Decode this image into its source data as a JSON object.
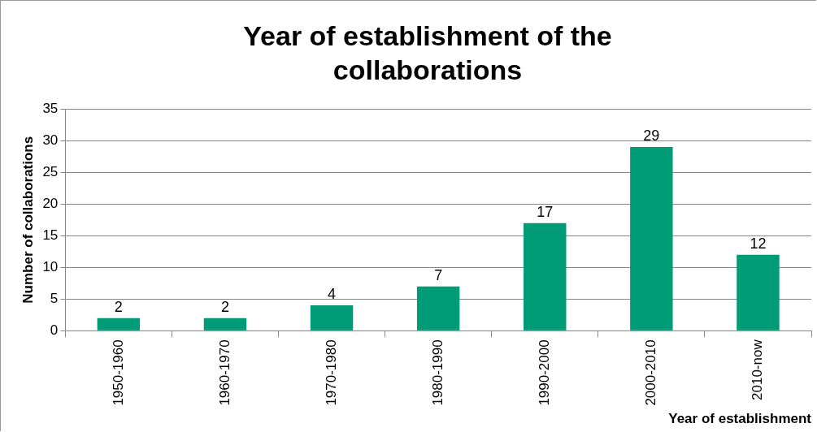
{
  "chart_data": {
    "type": "bar",
    "title": "Year of establishment of the collaborations",
    "xlabel": "Year of establishment",
    "ylabel": "Number of collaborations",
    "categories": [
      "1950-1960",
      "1960-1970",
      "1970-1980",
      "1980-1990",
      "1990-2000",
      "2000-2010",
      "2010-now"
    ],
    "values": [
      2,
      2,
      4,
      7,
      17,
      29,
      12
    ],
    "color": "#009b77",
    "ylim": [
      0,
      35
    ],
    "yticks": [
      0,
      5,
      10,
      15,
      20,
      25,
      30,
      35
    ],
    "grid": "y",
    "legend": false,
    "data_labels": true
  }
}
